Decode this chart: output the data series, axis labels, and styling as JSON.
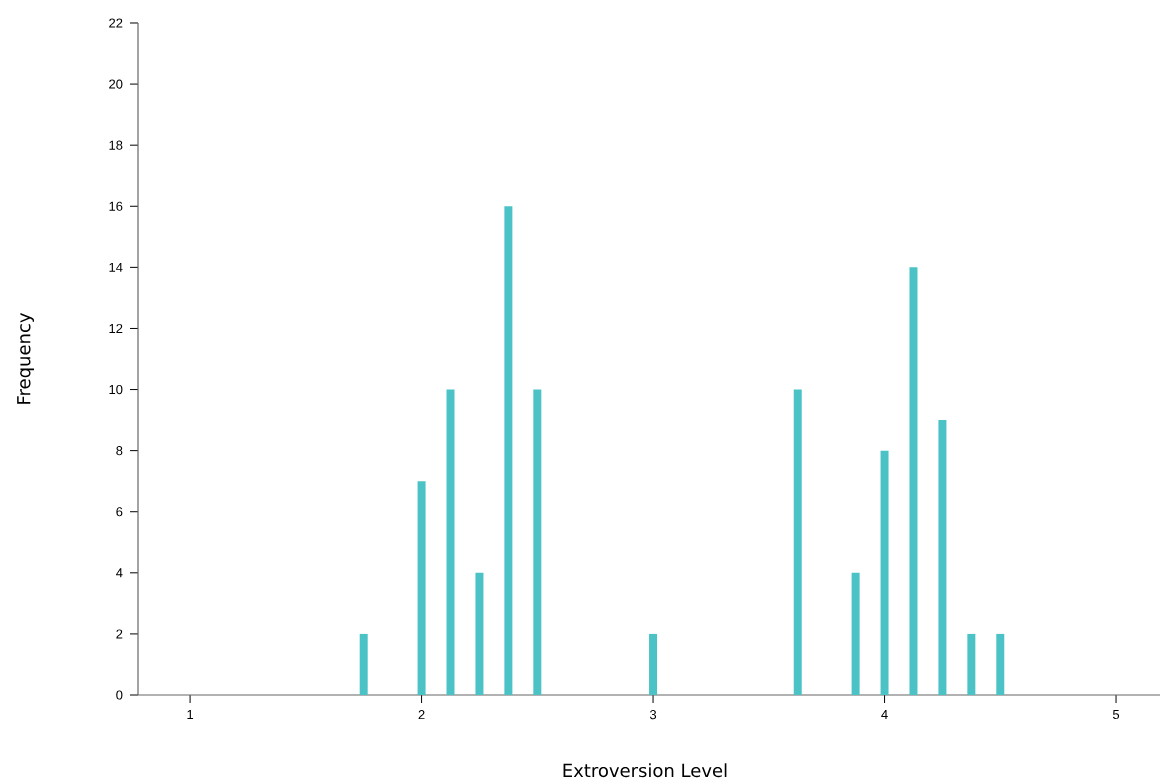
{
  "chart_data": {
    "type": "bar",
    "xlabel": "Extroversion Level",
    "ylabel": "Frequency",
    "x": [
      1.75,
      2.0,
      2.125,
      2.25,
      2.375,
      2.5,
      3.0,
      3.625,
      3.875,
      4.0,
      4.125,
      4.25,
      4.375,
      4.5
    ],
    "values": [
      2,
      7,
      10,
      4,
      16,
      10,
      2,
      10,
      4,
      8,
      14,
      9,
      2,
      2
    ],
    "color": "#4bc3c6",
    "xlim": [
      0.775,
      5.19
    ],
    "ylim": [
      0,
      22
    ],
    "xticks": [
      1,
      2,
      3,
      4,
      5
    ],
    "yticks": [
      0,
      2,
      4,
      6,
      8,
      10,
      12,
      14,
      16,
      18,
      20,
      22
    ]
  }
}
